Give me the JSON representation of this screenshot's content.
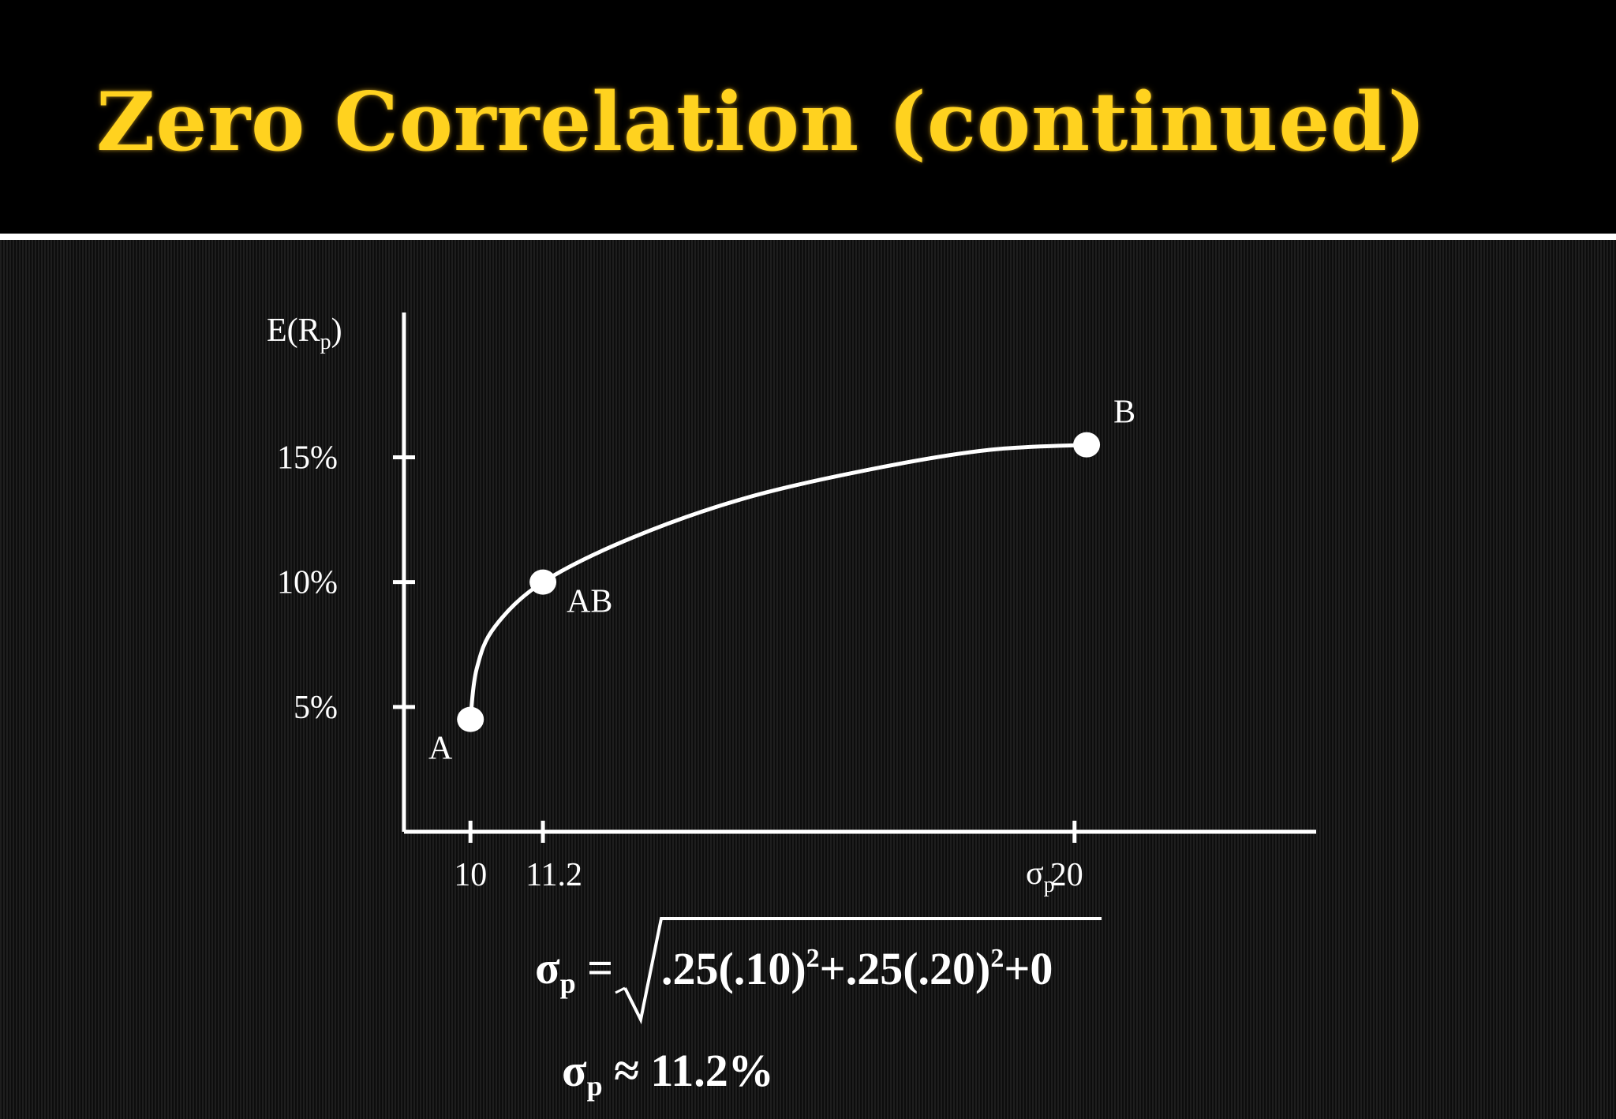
{
  "title": "Zero Correlation (continued)",
  "chart_data": {
    "type": "line",
    "ylabel": {
      "main": "E(R",
      "sub": "p",
      "tail": ")"
    },
    "xlabel": {
      "main": "σ",
      "sub": "p"
    },
    "ytick_labels": [
      "5%",
      "10%",
      "15%"
    ],
    "yticks": [
      5,
      10,
      15
    ],
    "xtick_labels": [
      "10",
      "11.2",
      "20"
    ],
    "xticks": [
      10,
      11.2,
      20
    ],
    "xlim": [
      8.9,
      24
    ],
    "ylim": [
      0,
      20.8
    ],
    "points": [
      {
        "label": "A",
        "x": 10,
        "y": 4.5
      },
      {
        "label": "AB",
        "x": 11.2,
        "y": 10
      },
      {
        "label": "B",
        "x": 20.2,
        "y": 15.5
      }
    ],
    "curve": [
      {
        "x": 10.0,
        "y": 4.5
      },
      {
        "x": 10.1,
        "y": 6.5
      },
      {
        "x": 10.4,
        "y": 8.2
      },
      {
        "x": 11.2,
        "y": 10.0
      },
      {
        "x": 12.7,
        "y": 11.8
      },
      {
        "x": 14.6,
        "y": 13.4
      },
      {
        "x": 16.8,
        "y": 14.6
      },
      {
        "x": 18.6,
        "y": 15.3
      },
      {
        "x": 20.2,
        "y": 15.5
      }
    ]
  },
  "formulas": {
    "sigma_eq": {
      "lhs": "σ",
      "lhs_sub": "p",
      "lhs_op": " =",
      "radicand_a": ".25(.10)",
      "exp_a": "2",
      "radicand_b": "+.25(.20)",
      "exp_b": "2",
      "radicand_c": "+0"
    },
    "sigma_approx": {
      "lhs": "σ",
      "lhs_sub": "p",
      "text": " ≈ 11.2%"
    }
  },
  "colors": {
    "title": "#FFD21F",
    "foreground": "#FFFFFF",
    "background": "#000000"
  }
}
